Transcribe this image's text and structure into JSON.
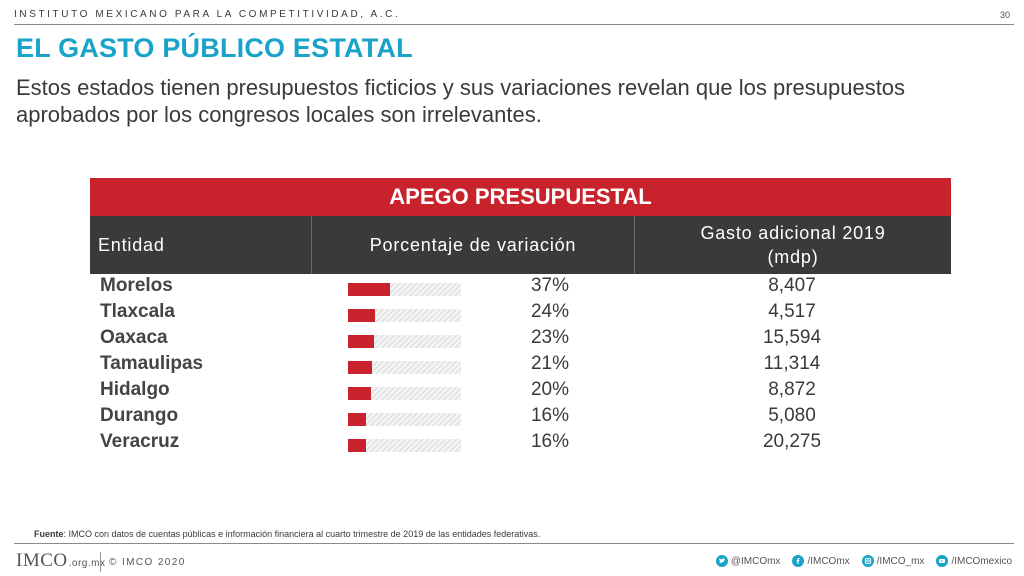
{
  "header": {
    "org_name": "INSTITUTO MEXICANO PARA LA COMPETITIVIDAD, A.C.",
    "page_number": "30"
  },
  "slide": {
    "title": "EL GASTO PÚBLICO ESTATAL",
    "subtitle": "Estos estados tienen presupuestos ficticios y sus variaciones revelan que los presupuestos aprobados por los congresos locales son irrelevantes."
  },
  "table": {
    "title": "APEGO PRESUPUESTAL",
    "columns": {
      "entidad": "Entidad",
      "porcentaje": "Porcentaje de variación",
      "gasto_line1": "Gasto adicional 2019",
      "gasto_line2": "(mdp)"
    },
    "rows": [
      {
        "entidad": "Morelos",
        "porcentaje": "37%",
        "fraction": 0.37,
        "gasto": "8,407"
      },
      {
        "entidad": "Tlaxcala",
        "porcentaje": "24%",
        "fraction": 0.24,
        "gasto": "4,517"
      },
      {
        "entidad": "Oaxaca",
        "porcentaje": "23%",
        "fraction": 0.23,
        "gasto": "15,594"
      },
      {
        "entidad": "Tamaulipas",
        "porcentaje": "21%",
        "fraction": 0.21,
        "gasto": "11,314"
      },
      {
        "entidad": "Hidalgo",
        "porcentaje": "20%",
        "fraction": 0.2,
        "gasto": "8,872"
      },
      {
        "entidad": "Durango",
        "porcentaje": "16%",
        "fraction": 0.16,
        "gasto": "5,080"
      },
      {
        "entidad": "Veracruz",
        "porcentaje": "16%",
        "fraction": 0.16,
        "gasto": "20,275"
      }
    ]
  },
  "source": {
    "label": "Fuente",
    "text": ": IMCO con datos de cuentas públicas e información financiera al cuarto trimestre de 2019 de las entidades federativas."
  },
  "footer": {
    "logo_text": "IMCO",
    "logo_suffix": ".org.mx",
    "copyright": "© IMCO 2020",
    "socials": [
      {
        "icon": "twitter-icon",
        "handle": "@IMCOmx"
      },
      {
        "icon": "facebook-icon",
        "handle": "/IMCOmx"
      },
      {
        "icon": "instagram-icon",
        "handle": "/IMCO_mx"
      },
      {
        "icon": "youtube-icon",
        "handle": "/IMCOmexico"
      }
    ]
  },
  "colors": {
    "accent_blue": "#1aa3c8",
    "accent_red": "#c8232c",
    "header_dark": "#3a3a3a"
  }
}
